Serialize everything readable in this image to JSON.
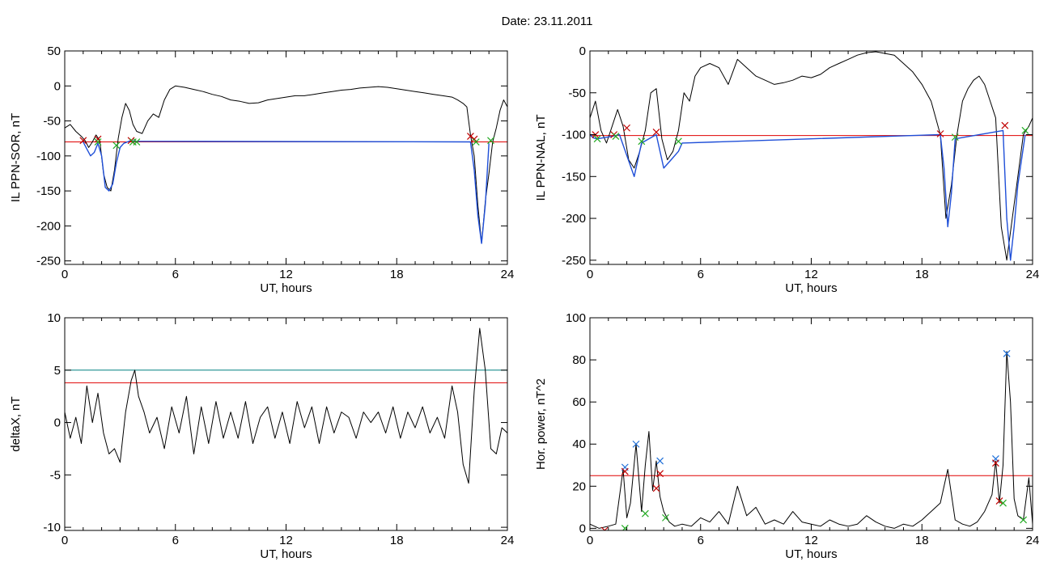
{
  "title": "Date:  23.11.2011",
  "chart_data": [
    {
      "type": "line",
      "ylabel": "IL PPN-SOR, nT",
      "xlabel": "UT, hours",
      "xlim": [
        0,
        24
      ],
      "ylim": [
        -255,
        50
      ],
      "xticks": [
        0,
        6,
        12,
        18,
        24
      ],
      "yticks": [
        50,
        0,
        -50,
        -100,
        -150,
        -200,
        -250
      ],
      "series": [
        {
          "color": "#000000",
          "x": [
            0,
            0.3,
            0.6,
            0.9,
            1.1,
            1.3,
            1.5,
            1.7,
            1.9,
            2.1,
            2.3,
            2.5,
            2.7,
            2.9,
            3.1,
            3.3,
            3.5,
            3.7,
            3.9,
            4.2,
            4.5,
            4.8,
            5.1,
            5.4,
            5.7,
            6.0,
            6.5,
            7.0,
            7.5,
            8.0,
            8.5,
            9.0,
            9.5,
            10.0,
            10.5,
            11.0,
            11.5,
            12.0,
            12.5,
            13.0,
            13.5,
            14.0,
            14.5,
            15.0,
            15.5,
            16.0,
            16.5,
            17.0,
            17.5,
            18.0,
            18.5,
            19.0,
            19.5,
            20.0,
            20.5,
            21.0,
            21.3,
            21.6,
            21.8,
            22.0,
            22.2,
            22.4,
            22.6,
            22.8,
            23.0,
            23.2,
            23.4,
            23.6,
            23.8,
            24.0
          ],
          "y": [
            -60,
            -55,
            -65,
            -72,
            -78,
            -88,
            -80,
            -70,
            -78,
            -125,
            -145,
            -150,
            -120,
            -75,
            -45,
            -25,
            -35,
            -55,
            -65,
            -68,
            -50,
            -40,
            -45,
            -20,
            -5,
            0,
            -2,
            -5,
            -8,
            -12,
            -15,
            -20,
            -22,
            -25,
            -24,
            -20,
            -18,
            -16,
            -14,
            -14,
            -12,
            -10,
            -8,
            -6,
            -5,
            -3,
            -2,
            -1,
            -2,
            -4,
            -6,
            -8,
            -10,
            -12,
            -14,
            -16,
            -20,
            -25,
            -30,
            -70,
            -100,
            -170,
            -225,
            -165,
            -125,
            -80,
            -60,
            -35,
            -20,
            -30
          ]
        },
        {
          "color": "#1f4fd8",
          "x": [
            1.0,
            1.2,
            1.4,
            1.6,
            1.8,
            2.0,
            2.2,
            2.4,
            2.6,
            2.8,
            3.0,
            3.2,
            3.4,
            3.6,
            3.8,
            22.0,
            22.2,
            22.4,
            22.6,
            22.8,
            23.0
          ],
          "y": [
            -80,
            -90,
            -100,
            -95,
            -82,
            -100,
            -145,
            -150,
            -140,
            -110,
            -88,
            -82,
            -80,
            -78,
            -79,
            -80,
            -120,
            -185,
            -225,
            -170,
            -82
          ]
        }
      ],
      "threshold_lines": [
        {
          "y": -80,
          "color": "#e00000"
        }
      ],
      "markers": [
        {
          "x": 1.0,
          "y": -78,
          "color": "#c00000"
        },
        {
          "x": 1.8,
          "y": -76,
          "color": "#c00000"
        },
        {
          "x": 1.8,
          "y": -80,
          "color": "#22aa22"
        },
        {
          "x": 2.8,
          "y": -85,
          "color": "#22aa22"
        },
        {
          "x": 3.6,
          "y": -78,
          "color": "#c00000"
        },
        {
          "x": 3.7,
          "y": -80,
          "color": "#22aa22"
        },
        {
          "x": 3.9,
          "y": -80,
          "color": "#22aa22"
        },
        {
          "x": 22.0,
          "y": -72,
          "color": "#c00000"
        },
        {
          "x": 22.2,
          "y": -76,
          "color": "#c00000"
        },
        {
          "x": 22.3,
          "y": -80,
          "color": "#22aa22"
        },
        {
          "x": 23.1,
          "y": -78,
          "color": "#22aa22"
        }
      ]
    },
    {
      "type": "line",
      "ylabel": "IL PPN-NAL, nT",
      "xlabel": "UT, hours",
      "xlim": [
        0,
        24
      ],
      "ylim": [
        -255,
        0
      ],
      "xticks": [
        0,
        6,
        12,
        18,
        24
      ],
      "yticks": [
        0,
        -50,
        -100,
        -150,
        -200,
        -250
      ],
      "series": [
        {
          "color": "#000000",
          "x": [
            0,
            0.3,
            0.6,
            0.9,
            1.2,
            1.5,
            1.8,
            2.1,
            2.4,
            2.7,
            3.0,
            3.3,
            3.6,
            3.9,
            4.2,
            4.5,
            4.8,
            5.1,
            5.4,
            5.7,
            6.0,
            6.5,
            7.0,
            7.5,
            8.0,
            8.5,
            9.0,
            9.5,
            10.0,
            10.5,
            11.0,
            11.5,
            12.0,
            12.5,
            13.0,
            13.5,
            14.0,
            14.5,
            15.0,
            15.5,
            16.0,
            16.5,
            17.0,
            17.5,
            18.0,
            18.5,
            19.0,
            19.3,
            19.6,
            19.9,
            20.2,
            20.5,
            20.8,
            21.1,
            21.4,
            21.7,
            22.0,
            22.3,
            22.6,
            22.9,
            23.2,
            23.5,
            23.8,
            24.0
          ],
          "y": [
            -80,
            -60,
            -95,
            -110,
            -90,
            -70,
            -90,
            -130,
            -140,
            -120,
            -95,
            -50,
            -45,
            -105,
            -130,
            -120,
            -95,
            -50,
            -60,
            -30,
            -20,
            -15,
            -20,
            -40,
            -10,
            -20,
            -30,
            -35,
            -40,
            -38,
            -35,
            -30,
            -32,
            -28,
            -20,
            -15,
            -10,
            -5,
            -2,
            -1,
            -3,
            -5,
            -15,
            -25,
            -40,
            -60,
            -100,
            -200,
            -160,
            -100,
            -60,
            -45,
            -35,
            -30,
            -40,
            -60,
            -80,
            -210,
            -250,
            -200,
            -150,
            -100,
            -90,
            -80
          ]
        },
        {
          "color": "#1f4fd8",
          "x": [
            0.0,
            0.2,
            0.4,
            1.2,
            1.6,
            2.0,
            2.4,
            2.8,
            3.6,
            4.0,
            4.4,
            4.8,
            5.0,
            19.0,
            19.2,
            19.4,
            19.6,
            19.8,
            22.4,
            22.6,
            22.8,
            23.0,
            23.2,
            23.6
          ],
          "y": [
            -100,
            -104,
            -105,
            -102,
            -100,
            -125,
            -150,
            -110,
            -100,
            -140,
            -130,
            -120,
            -110,
            -100,
            -140,
            -210,
            -170,
            -105,
            -95,
            -200,
            -250,
            -210,
            -160,
            -100
          ]
        }
      ],
      "threshold_lines": [
        {
          "y": -101,
          "color": "#e00000"
        }
      ],
      "markers": [
        {
          "x": 0.3,
          "y": -100,
          "color": "#c00000"
        },
        {
          "x": 0.4,
          "y": -105,
          "color": "#22aa22"
        },
        {
          "x": 1.3,
          "y": -100,
          "color": "#c00000"
        },
        {
          "x": 1.4,
          "y": -102,
          "color": "#22aa22"
        },
        {
          "x": 2.0,
          "y": -92,
          "color": "#c00000"
        },
        {
          "x": 2.8,
          "y": -108,
          "color": "#22aa22"
        },
        {
          "x": 3.6,
          "y": -97,
          "color": "#c00000"
        },
        {
          "x": 4.8,
          "y": -108,
          "color": "#22aa22"
        },
        {
          "x": 19.0,
          "y": -99,
          "color": "#c00000"
        },
        {
          "x": 19.8,
          "y": -103,
          "color": "#22aa22"
        },
        {
          "x": 22.5,
          "y": -89,
          "color": "#c00000"
        },
        {
          "x": 23.6,
          "y": -95,
          "color": "#22aa22"
        }
      ]
    },
    {
      "type": "line",
      "ylabel": "deltaX, nT",
      "xlabel": "UT, hours",
      "xlim": [
        0,
        24
      ],
      "ylim": [
        -10.3,
        10
      ],
      "xticks": [
        0,
        6,
        12,
        18,
        24
      ],
      "yticks": [
        10,
        5,
        0,
        -5,
        -10
      ],
      "series": [
        {
          "color": "#000000",
          "x": [
            0,
            0.3,
            0.6,
            0.9,
            1.2,
            1.5,
            1.8,
            2.1,
            2.4,
            2.7,
            3.0,
            3.3,
            3.6,
            3.8,
            4.0,
            4.3,
            4.6,
            5.0,
            5.4,
            5.8,
            6.2,
            6.6,
            7.0,
            7.4,
            7.8,
            8.2,
            8.6,
            9.0,
            9.4,
            9.8,
            10.2,
            10.6,
            11.0,
            11.4,
            11.8,
            12.2,
            12.6,
            13.0,
            13.4,
            13.8,
            14.2,
            14.6,
            15.0,
            15.4,
            15.8,
            16.2,
            16.6,
            17.0,
            17.4,
            17.8,
            18.2,
            18.6,
            19.0,
            19.4,
            19.8,
            20.2,
            20.6,
            21.0,
            21.3,
            21.6,
            21.9,
            22.2,
            22.5,
            22.8,
            23.1,
            23.4,
            23.7,
            24.0
          ],
          "y": [
            1,
            -1.5,
            0.5,
            -2,
            3.5,
            0,
            2.8,
            -1,
            -3,
            -2.5,
            -3.8,
            1,
            4,
            5,
            2.5,
            1,
            -1,
            0.5,
            -2.5,
            1.5,
            -1,
            2.5,
            -3,
            1.5,
            -2,
            2,
            -1.5,
            1,
            -1.5,
            2,
            -2,
            0.5,
            1.5,
            -1.5,
            1,
            -2,
            2,
            -0.5,
            1.5,
            -2,
            1.5,
            -1,
            1,
            0.5,
            -1.5,
            1,
            0,
            1,
            -1,
            1.5,
            -1.5,
            1,
            -0.5,
            1.5,
            -1,
            0.5,
            -1.5,
            3.5,
            1,
            -4,
            -5.8,
            3,
            9,
            5,
            -2.5,
            -3,
            -0.5,
            -1
          ]
        }
      ],
      "threshold_lines": [
        {
          "y": 5,
          "color": "#008080"
        },
        {
          "y": 3.8,
          "color": "#e00000"
        }
      ]
    },
    {
      "type": "line",
      "ylabel": "Hor. power, nT^2",
      "xlabel": "UT, hours",
      "xlim": [
        0,
        24
      ],
      "ylim": [
        -1,
        100
      ],
      "xticks": [
        0,
        6,
        12,
        18,
        24
      ],
      "yticks": [
        100,
        80,
        60,
        40,
        20,
        0
      ],
      "series": [
        {
          "color": "#000000",
          "x": [
            0,
            0.5,
            1.0,
            1.4,
            1.8,
            2.0,
            2.2,
            2.5,
            2.8,
            3.0,
            3.2,
            3.4,
            3.6,
            3.8,
            4.0,
            4.3,
            4.6,
            5.0,
            5.5,
            6.0,
            6.5,
            7.0,
            7.5,
            8.0,
            8.5,
            9.0,
            9.5,
            10.0,
            10.5,
            11.0,
            11.5,
            12.0,
            12.5,
            13.0,
            13.5,
            14.0,
            14.5,
            15.0,
            15.5,
            16.0,
            16.5,
            17.0,
            17.5,
            18.0,
            18.5,
            19.0,
            19.4,
            19.8,
            20.2,
            20.6,
            21.0,
            21.4,
            21.8,
            22.0,
            22.2,
            22.4,
            22.6,
            22.8,
            23.0,
            23.2,
            23.5,
            23.8,
            24.0
          ],
          "y": [
            2,
            0,
            1,
            2,
            28,
            5,
            12,
            40,
            8,
            30,
            46,
            18,
            32,
            15,
            8,
            3,
            1,
            2,
            1,
            5,
            3,
            8,
            2,
            20,
            6,
            10,
            2,
            4,
            2,
            8,
            3,
            2,
            1,
            4,
            2,
            1,
            2,
            6,
            3,
            1,
            0,
            2,
            1,
            4,
            8,
            12,
            28,
            4,
            2,
            1,
            3,
            8,
            16,
            32,
            12,
            30,
            84,
            60,
            14,
            6,
            4,
            24,
            2
          ]
        }
      ],
      "threshold_lines": [
        {
          "y": 25,
          "color": "#e00000"
        }
      ],
      "markers": [
        {
          "x": 1.9,
          "y": 29,
          "color": "#1f6fd8"
        },
        {
          "x": 1.9,
          "y": 27,
          "color": "#c00000"
        },
        {
          "x": 2.5,
          "y": 40,
          "color": "#1f6fd8"
        },
        {
          "x": 3.0,
          "y": 7,
          "color": "#22aa22"
        },
        {
          "x": 3.6,
          "y": 19,
          "color": "#c00000"
        },
        {
          "x": 3.8,
          "y": 32,
          "color": "#1f6fd8"
        },
        {
          "x": 3.8,
          "y": 26,
          "color": "#c00000"
        },
        {
          "x": 4.1,
          "y": 5,
          "color": "#22aa22"
        },
        {
          "x": 22.0,
          "y": 33,
          "color": "#1f6fd8"
        },
        {
          "x": 22.0,
          "y": 31,
          "color": "#c00000"
        },
        {
          "x": 22.2,
          "y": 13,
          "color": "#c00000"
        },
        {
          "x": 22.4,
          "y": 12,
          "color": "#22aa22"
        },
        {
          "x": 22.6,
          "y": 83,
          "color": "#1f6fd8"
        },
        {
          "x": 23.5,
          "y": 4,
          "color": "#22aa22"
        },
        {
          "x": 0.8,
          "y": -1,
          "color": "#c00000"
        },
        {
          "x": 1.9,
          "y": 0,
          "color": "#22aa22"
        }
      ]
    }
  ]
}
